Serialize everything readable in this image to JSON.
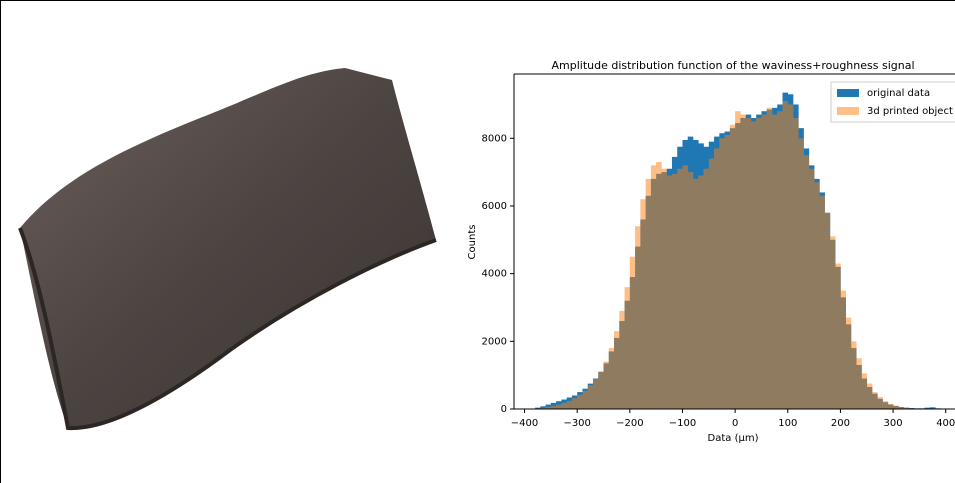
{
  "chart_data": {
    "type": "histogram",
    "title": "Amplitude distribution function of the waviness+roughness signal",
    "xlabel": "Data (μm)",
    "ylabel": "Counts",
    "bins": [
      -400,
      -390,
      -380,
      -370,
      -360,
      -350,
      -340,
      -330,
      -320,
      -310,
      -300,
      -290,
      -280,
      -270,
      -260,
      -250,
      -240,
      -230,
      -220,
      -210,
      -200,
      -190,
      -180,
      -170,
      -160,
      -150,
      -140,
      -130,
      -120,
      -110,
      -100,
      -90,
      -80,
      -70,
      -60,
      -50,
      -40,
      -30,
      -20,
      -10,
      0,
      10,
      20,
      30,
      40,
      50,
      60,
      70,
      80,
      90,
      100,
      110,
      120,
      130,
      140,
      150,
      160,
      170,
      180,
      190,
      200,
      210,
      220,
      230,
      240,
      250,
      260,
      270,
      280,
      290,
      300,
      310,
      320,
      330,
      340,
      350,
      360,
      370,
      380,
      390,
      400
    ],
    "series": [
      {
        "name": "original data",
        "color": "#1f77b4",
        "opacity": 1,
        "values": [
          0,
          10,
          40,
          80,
          130,
          180,
          230,
          280,
          340,
          400,
          500,
          600,
          750,
          900,
          1100,
          1350,
          1700,
          2100,
          2600,
          3200,
          3900,
          4800,
          5600,
          6300,
          6800,
          6950,
          7000,
          7100,
          7450,
          7750,
          7950,
          8050,
          7950,
          7850,
          7750,
          7900,
          8050,
          8150,
          8200,
          8300,
          8450,
          8600,
          8700,
          8600,
          8700,
          8800,
          8850,
          8900,
          9000,
          9350,
          9300,
          9000,
          8300,
          7700,
          7200,
          6800,
          6400,
          5800,
          5000,
          4200,
          3300,
          2500,
          1800,
          1300,
          900,
          650,
          450,
          300,
          200,
          130,
          90,
          60,
          40,
          30,
          20,
          20,
          40,
          50,
          20,
          10
        ]
      },
      {
        "name": "3d printed object",
        "color": "#ff7f0e",
        "opacity": 0.5,
        "values": [
          0,
          0,
          10,
          30,
          60,
          90,
          130,
          180,
          240,
          320,
          420,
          540,
          700,
          880,
          1100,
          1400,
          1800,
          2300,
          2900,
          3600,
          4500,
          5400,
          6200,
          6800,
          7200,
          7300,
          7100,
          6900,
          6950,
          7100,
          7200,
          7000,
          6800,
          6900,
          7100,
          7400,
          7700,
          8000,
          8100,
          8400,
          8800,
          8700,
          8600,
          8500,
          8600,
          8700,
          8900,
          8700,
          8800,
          9100,
          9000,
          8600,
          8000,
          7500,
          7100,
          6700,
          6300,
          5800,
          5100,
          4300,
          3500,
          2700,
          2000,
          1500,
          1050,
          750,
          500,
          350,
          230,
          150,
          100,
          60,
          40,
          20,
          10,
          5,
          5,
          0,
          0,
          0
        ]
      }
    ],
    "xlim": [
      -420,
      410
    ],
    "xticks": [
      {
        "value": -400,
        "label": "−400"
      },
      {
        "value": -300,
        "label": "−300"
      },
      {
        "value": -200,
        "label": "−200"
      },
      {
        "value": -100,
        "label": "−100"
      },
      0,
      100,
      200,
      300,
      400
    ],
    "ylim": [
      0,
      9900
    ],
    "yticks": [
      0,
      2000,
      4000,
      6000,
      8000
    ],
    "legend": "upper right"
  }
}
